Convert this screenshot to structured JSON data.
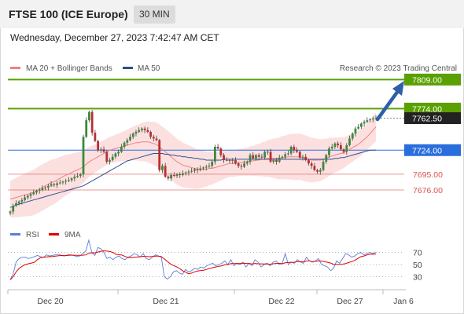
{
  "header": {
    "title": "FTSE 100 (ICE Europe)",
    "timeframe": "30 MIN",
    "datetime": "Wednesday, December 27, 2023 7:42:47 AM CET"
  },
  "legend": {
    "items": [
      {
        "label": "MA 20 + Bollinger Bands",
        "color": "#f08080"
      },
      {
        "label": "MA 50",
        "color": "#2b4f8f"
      }
    ],
    "copyright": "Research © 2023 Trading Central"
  },
  "levels": [
    {
      "value": 7809.0,
      "label": "7809.00",
      "color": "#5aa000",
      "style": "solid-box"
    },
    {
      "value": 7774.0,
      "label": "7774.00",
      "color": "#5aa000",
      "style": "solid-box"
    },
    {
      "value": 7762.5,
      "label": "7762.50",
      "color": "#222222",
      "style": "dark-box"
    },
    {
      "value": 7724.0,
      "label": "7724.00",
      "color": "#2a6edc",
      "style": "solid-box"
    },
    {
      "value": 7695.0,
      "label": "7695.00",
      "color": "#d9534f",
      "style": "text"
    },
    {
      "value": 7676.0,
      "label": "7676.00",
      "color": "#d9534f",
      "style": "text"
    }
  ],
  "rsi_panel": {
    "legend": [
      {
        "label": "RSI",
        "color": "#5b7fd6"
      },
      {
        "label": "9MA",
        "color": "#e00000"
      }
    ],
    "ticks": [
      {
        "value": 70,
        "label": "70"
      },
      {
        "value": 50,
        "label": "50"
      },
      {
        "value": 30,
        "label": "30"
      }
    ],
    "rsi": [
      25,
      35,
      55,
      60,
      62,
      62,
      60,
      61,
      63,
      65,
      63,
      62,
      66,
      64,
      65,
      66,
      67,
      65,
      64,
      66,
      66,
      65,
      63,
      64,
      68,
      72,
      90,
      70,
      65,
      78,
      76,
      70,
      60,
      62,
      58,
      62,
      64,
      60,
      58,
      62,
      64,
      68,
      66,
      62,
      68,
      60,
      58,
      62,
      66,
      64,
      62,
      30,
      26,
      30,
      38,
      40,
      36,
      34,
      42,
      38,
      40,
      44,
      42,
      46,
      44,
      48,
      50,
      52,
      48,
      50,
      52,
      56,
      50,
      58,
      48,
      52,
      50,
      54,
      46,
      52,
      48,
      58,
      54,
      46,
      50,
      52,
      48,
      54,
      56,
      50,
      52,
      68,
      50,
      54,
      52,
      58,
      54,
      52,
      62,
      56,
      54,
      56,
      60,
      50,
      48,
      46,
      40,
      44,
      56,
      52,
      60,
      68,
      66,
      62,
      64,
      68,
      70,
      66,
      68,
      70,
      68,
      70
    ]
  },
  "chart_data": {
    "type": "candlestick",
    "title": "FTSE 100 (ICE Europe)",
    "timeframe": "30 MIN",
    "x_tick_labels": [
      "Dec 20",
      "Dec 21",
      "Dec 22",
      "Dec 27",
      "Jan 6"
    ],
    "y_range": [
      7642,
      7815
    ],
    "close": [
      7650,
      7657,
      7660,
      7662,
      7664,
      7667,
      7669,
      7671,
      7673,
      7675,
      7676,
      7678,
      7679,
      7681,
      7683,
      7682,
      7684,
      7685,
      7686,
      7687,
      7688,
      7690,
      7692,
      7693,
      7695,
      7740,
      7760,
      7770,
      7745,
      7735,
      7724,
      7725,
      7722,
      7710,
      7712,
      7716,
      7720,
      7722,
      7728,
      7733,
      7736,
      7740,
      7744,
      7746,
      7748,
      7750,
      7748,
      7746,
      7740,
      7738,
      7736,
      7700,
      7705,
      7692,
      7690,
      7694,
      7693,
      7695,
      7694,
      7696,
      7697,
      7698,
      7699,
      7701,
      7700,
      7702,
      7703,
      7704,
      7705,
      7710,
      7728,
      7726,
      7718,
      7712,
      7712,
      7711,
      7712,
      7708,
      7705,
      7704,
      7708,
      7710,
      7718,
      7714,
      7718,
      7716,
      7715,
      7722,
      7722,
      7710,
      7712,
      7710,
      7715,
      7716,
      7719,
      7720,
      7728,
      7724,
      7722,
      7715,
      7716,
      7712,
      7708,
      7705,
      7700,
      7698,
      7700,
      7710,
      7718,
      7726,
      7728,
      7732,
      7730,
      7725,
      7722,
      7730,
      7738,
      7744,
      7750,
      7752,
      7756,
      7758,
      7760,
      7761,
      7762,
      7762.5
    ],
    "ma20": [
      7665,
      7666,
      7667,
      7668,
      7669,
      7670,
      7671,
      7672,
      7673,
      7675,
      7677,
      7679,
      7681,
      7683,
      7685,
      7686,
      7688,
      7690,
      7692,
      7694,
      7695,
      7697,
      7699,
      7700,
      7702,
      7704,
      7707,
      7710,
      7712,
      7714,
      7716,
      7718,
      7720,
      7722,
      7724,
      7725,
      7726,
      7727,
      7728,
      7729,
      7730,
      7731,
      7732,
      7733,
      7733,
      7734,
      7734,
      7734,
      7733,
      7732,
      7731,
      7728,
      7725,
      7722,
      7719,
      7716,
      7713,
      7710,
      7708,
      7706,
      7705,
      7704,
      7703,
      7702,
      7701,
      7701,
      7701,
      7701,
      7702,
      7702,
      7703,
      7704,
      7705,
      7706,
      7707,
      7708,
      7708,
      7708,
      7709,
      7709,
      7710,
      7710,
      7711,
      7711,
      7712,
      7712,
      7713,
      7713,
      7714,
      7714,
      7714,
      7714,
      7714,
      7715,
      7715,
      7716,
      7716,
      7716,
      7716,
      7716,
      7715,
      7714,
      7713,
      7712,
      7712,
      7712,
      7712,
      7713,
      7714,
      7716,
      7717,
      7718,
      7719,
      7720,
      7721,
      7723,
      7725,
      7727,
      7729,
      7731,
      7734,
      7737,
      7740,
      7744,
      7748,
      7752
    ],
    "ma50": [
      7655,
      7656,
      7658,
      7659,
      7660,
      7661,
      7662,
      7663,
      7664,
      7665,
      7666,
      7667,
      7668,
      7669,
      7670,
      7671,
      7672,
      7673,
      7674,
      7675,
      7676,
      7677,
      7678,
      7679,
      7680,
      7681,
      7683,
      7685,
      7687,
      7689,
      7691,
      7693,
      7695,
      7697,
      7699,
      7701,
      7703,
      7705,
      7707,
      7709,
      7711,
      7712,
      7713,
      7714,
      7715,
      7716,
      7717,
      7718,
      7719,
      7720,
      7720,
      7720,
      7720,
      7719,
      7719,
      7718,
      7718,
      7717,
      7717,
      7716,
      7716,
      7715,
      7715,
      7714,
      7714,
      7713,
      7713,
      7712,
      7712,
      7712,
      7712,
      7712,
      7712,
      7713,
      7713,
      7713,
      7713,
      7713,
      7713,
      7713,
      7713,
      7713,
      7713,
      7713,
      7713,
      7713,
      7713,
      7713,
      7713,
      7713,
      7713,
      7713,
      7713,
      7713,
      7713,
      7713,
      7713,
      7713,
      7713,
      7713,
      7713,
      7713,
      7713,
      7713,
      7713,
      7713,
      7713,
      7713,
      7713,
      7713,
      7713,
      7714,
      7714,
      7715,
      7715,
      7716,
      7717,
      7718,
      7719,
      7720,
      7721,
      7722,
      7723,
      7724,
      7724,
      7724
    ],
    "bollinger_upper_offset": 22,
    "bollinger_lower_offset": 22
  }
}
